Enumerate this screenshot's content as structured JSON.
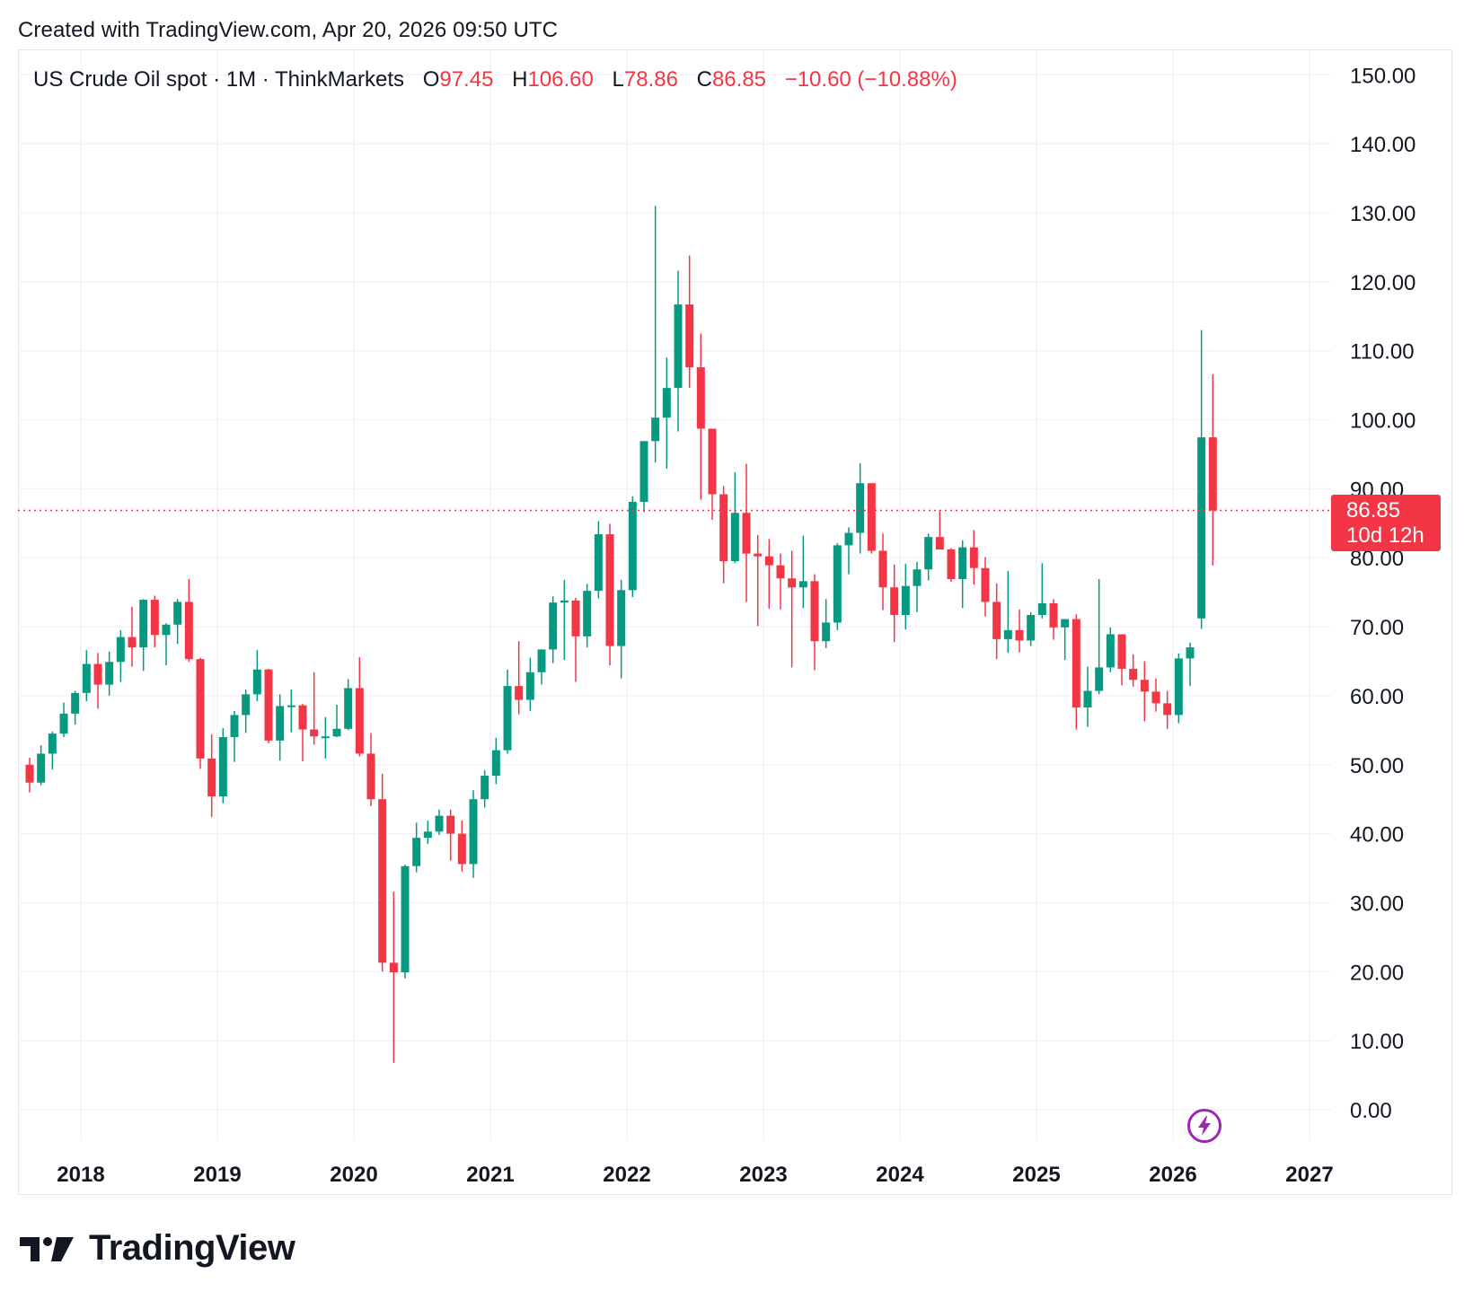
{
  "header": {
    "created_text": "Created with TradingView.com, Apr 20, 2026 09:50 UTC"
  },
  "legend": {
    "symbol": "US Crude Oil spot · 1M · ThinkMarkets",
    "open_label": "O",
    "open": "97.45",
    "high_label": "H",
    "high": "106.60",
    "low_label": "L",
    "low": "78.86",
    "close_label": "C",
    "close": "86.85",
    "change": "−10.60 (−10.88%)"
  },
  "price_tag": {
    "price": "86.85",
    "countdown": "10d 12h"
  },
  "colors": {
    "up": "#089981",
    "down": "#f23645",
    "grid": "#f0f3fa",
    "text": "#131722",
    "bolt": "#9c27b0"
  },
  "icons": {
    "alert": "lightning-bolt-icon"
  },
  "footer": {
    "brand": "TradingView",
    "logo": "tradingview-logo-icon"
  },
  "chart_data": {
    "type": "candlestick",
    "interval": "1M",
    "current_price": 86.85,
    "y_ticks": [
      "0.00",
      "10.00",
      "20.00",
      "30.00",
      "40.00",
      "50.00",
      "60.00",
      "70.00",
      "80.00",
      "90.00",
      "100.00",
      "110.00",
      "120.00",
      "130.00",
      "140.00",
      "150.00"
    ],
    "ylim": [
      -5,
      152
    ],
    "x_ticks": [
      "2018",
      "2019",
      "2020",
      "2021",
      "2022",
      "2023",
      "2024",
      "2025",
      "2026",
      "2027"
    ],
    "grid": true,
    "candles": [
      {
        "date": "2017-08",
        "o": 50.0,
        "h": 51.0,
        "l": 46.0,
        "c": 47.4
      },
      {
        "date": "2017-09",
        "o": 47.4,
        "h": 52.8,
        "l": 47.0,
        "c": 51.6
      },
      {
        "date": "2017-10",
        "o": 51.6,
        "h": 54.8,
        "l": 49.3,
        "c": 54.5
      },
      {
        "date": "2017-11",
        "o": 54.5,
        "h": 59.0,
        "l": 54.0,
        "c": 57.4
      },
      {
        "date": "2017-12",
        "o": 57.4,
        "h": 60.7,
        "l": 55.8,
        "c": 60.4
      },
      {
        "date": "2018-01",
        "o": 60.4,
        "h": 66.6,
        "l": 59.2,
        "c": 64.6
      },
      {
        "date": "2018-02",
        "o": 64.6,
        "h": 66.2,
        "l": 58.1,
        "c": 61.6
      },
      {
        "date": "2018-03",
        "o": 61.6,
        "h": 66.4,
        "l": 60.0,
        "c": 64.9
      },
      {
        "date": "2018-04",
        "o": 64.9,
        "h": 69.5,
        "l": 62.0,
        "c": 68.5
      },
      {
        "date": "2018-05",
        "o": 68.5,
        "h": 72.9,
        "l": 64.2,
        "c": 67.0
      },
      {
        "date": "2018-06",
        "o": 67.0,
        "h": 74.0,
        "l": 63.6,
        "c": 73.9
      },
      {
        "date": "2018-07",
        "o": 73.9,
        "h": 74.5,
        "l": 67.0,
        "c": 68.8
      },
      {
        "date": "2018-08",
        "o": 68.8,
        "h": 70.5,
        "l": 64.4,
        "c": 70.3
      },
      {
        "date": "2018-09",
        "o": 70.3,
        "h": 74.0,
        "l": 67.5,
        "c": 73.6
      },
      {
        "date": "2018-10",
        "o": 73.6,
        "h": 76.9,
        "l": 64.9,
        "c": 65.3
      },
      {
        "date": "2018-11",
        "o": 65.3,
        "h": 65.5,
        "l": 49.4,
        "c": 50.9
      },
      {
        "date": "2018-12",
        "o": 50.9,
        "h": 54.4,
        "l": 42.4,
        "c": 45.4
      },
      {
        "date": "2019-01",
        "o": 45.4,
        "h": 55.3,
        "l": 44.4,
        "c": 54.0
      },
      {
        "date": "2019-02",
        "o": 54.0,
        "h": 57.8,
        "l": 50.4,
        "c": 57.2
      },
      {
        "date": "2019-03",
        "o": 57.2,
        "h": 60.9,
        "l": 54.6,
        "c": 60.2
      },
      {
        "date": "2019-04",
        "o": 60.2,
        "h": 66.6,
        "l": 59.2,
        "c": 63.8
      },
      {
        "date": "2019-05",
        "o": 63.8,
        "h": 63.9,
        "l": 53.1,
        "c": 53.5
      },
      {
        "date": "2019-06",
        "o": 53.5,
        "h": 60.2,
        "l": 50.6,
        "c": 58.5
      },
      {
        "date": "2019-07",
        "o": 58.5,
        "h": 60.9,
        "l": 54.7,
        "c": 58.6
      },
      {
        "date": "2019-08",
        "o": 58.6,
        "h": 58.8,
        "l": 50.5,
        "c": 55.1
      },
      {
        "date": "2019-09",
        "o": 55.1,
        "h": 63.4,
        "l": 52.9,
        "c": 54.1
      },
      {
        "date": "2019-10",
        "o": 54.1,
        "h": 56.9,
        "l": 50.9,
        "c": 54.1
      },
      {
        "date": "2019-11",
        "o": 54.1,
        "h": 58.7,
        "l": 54.0,
        "c": 55.2
      },
      {
        "date": "2019-12",
        "o": 55.2,
        "h": 62.4,
        "l": 55.0,
        "c": 61.1
      },
      {
        "date": "2020-01",
        "o": 61.1,
        "h": 65.6,
        "l": 51.2,
        "c": 51.6
      },
      {
        "date": "2020-02",
        "o": 51.6,
        "h": 54.6,
        "l": 44.0,
        "c": 45.0
      },
      {
        "date": "2020-03",
        "o": 45.0,
        "h": 48.7,
        "l": 20.0,
        "c": 21.3
      },
      {
        "date": "2020-04",
        "o": 21.3,
        "h": 31.6,
        "l": 6.8,
        "c": 19.9
      },
      {
        "date": "2020-05",
        "o": 19.9,
        "h": 35.5,
        "l": 19.0,
        "c": 35.3
      },
      {
        "date": "2020-06",
        "o": 35.3,
        "h": 41.6,
        "l": 34.4,
        "c": 39.4
      },
      {
        "date": "2020-07",
        "o": 39.4,
        "h": 41.9,
        "l": 38.5,
        "c": 40.3
      },
      {
        "date": "2020-08",
        "o": 40.3,
        "h": 43.5,
        "l": 39.8,
        "c": 42.6
      },
      {
        "date": "2020-09",
        "o": 42.6,
        "h": 43.5,
        "l": 36.1,
        "c": 40.0
      },
      {
        "date": "2020-10",
        "o": 40.0,
        "h": 41.9,
        "l": 34.5,
        "c": 35.6
      },
      {
        "date": "2020-11",
        "o": 35.6,
        "h": 46.3,
        "l": 33.6,
        "c": 45.0
      },
      {
        "date": "2020-12",
        "o": 45.0,
        "h": 49.2,
        "l": 43.8,
        "c": 48.4
      },
      {
        "date": "2021-01",
        "o": 48.4,
        "h": 53.9,
        "l": 47.2,
        "c": 52.1
      },
      {
        "date": "2021-02",
        "o": 52.1,
        "h": 63.8,
        "l": 51.6,
        "c": 61.4
      },
      {
        "date": "2021-03",
        "o": 61.4,
        "h": 67.9,
        "l": 57.3,
        "c": 59.4
      },
      {
        "date": "2021-04",
        "o": 59.4,
        "h": 65.5,
        "l": 57.8,
        "c": 63.4
      },
      {
        "date": "2021-05",
        "o": 63.4,
        "h": 66.7,
        "l": 61.6,
        "c": 66.7
      },
      {
        "date": "2021-06",
        "o": 66.7,
        "h": 74.4,
        "l": 64.7,
        "c": 73.5
      },
      {
        "date": "2021-07",
        "o": 73.5,
        "h": 76.8,
        "l": 65.2,
        "c": 73.8
      },
      {
        "date": "2021-08",
        "o": 73.8,
        "h": 74.2,
        "l": 62.0,
        "c": 68.6
      },
      {
        "date": "2021-09",
        "o": 68.6,
        "h": 76.2,
        "l": 67.0,
        "c": 75.2
      },
      {
        "date": "2021-10",
        "o": 75.2,
        "h": 85.3,
        "l": 74.1,
        "c": 83.4
      },
      {
        "date": "2021-11",
        "o": 83.4,
        "h": 84.9,
        "l": 64.4,
        "c": 67.2
      },
      {
        "date": "2021-12",
        "o": 67.2,
        "h": 76.8,
        "l": 62.5,
        "c": 75.3
      },
      {
        "date": "2022-01",
        "o": 75.3,
        "h": 88.9,
        "l": 74.3,
        "c": 88.1
      },
      {
        "date": "2022-02",
        "o": 88.1,
        "h": 96.1,
        "l": 86.6,
        "c": 96.9
      },
      {
        "date": "2022-03",
        "o": 96.9,
        "h": 131.0,
        "l": 93.8,
        "c": 100.3
      },
      {
        "date": "2022-04",
        "o": 100.3,
        "h": 109.0,
        "l": 92.9,
        "c": 104.6
      },
      {
        "date": "2022-05",
        "o": 104.6,
        "h": 121.6,
        "l": 98.3,
        "c": 116.7
      },
      {
        "date": "2022-06",
        "o": 116.7,
        "h": 123.8,
        "l": 104.6,
        "c": 107.6
      },
      {
        "date": "2022-07",
        "o": 107.6,
        "h": 112.5,
        "l": 88.4,
        "c": 98.7
      },
      {
        "date": "2022-08",
        "o": 98.7,
        "h": 97.6,
        "l": 85.5,
        "c": 89.2
      },
      {
        "date": "2022-09",
        "o": 89.2,
        "h": 90.4,
        "l": 76.3,
        "c": 79.5
      },
      {
        "date": "2022-10",
        "o": 79.5,
        "h": 92.4,
        "l": 79.2,
        "c": 86.5
      },
      {
        "date": "2022-11",
        "o": 86.5,
        "h": 93.6,
        "l": 73.6,
        "c": 80.6
      },
      {
        "date": "2022-12",
        "o": 80.6,
        "h": 83.3,
        "l": 70.1,
        "c": 80.2
      },
      {
        "date": "2023-01",
        "o": 80.2,
        "h": 82.7,
        "l": 72.6,
        "c": 78.9
      },
      {
        "date": "2023-02",
        "o": 78.9,
        "h": 80.6,
        "l": 72.5,
        "c": 77.0
      },
      {
        "date": "2023-03",
        "o": 77.0,
        "h": 81.0,
        "l": 64.1,
        "c": 75.7
      },
      {
        "date": "2023-04",
        "o": 75.7,
        "h": 83.2,
        "l": 72.7,
        "c": 76.6
      },
      {
        "date": "2023-05",
        "o": 76.6,
        "h": 77.6,
        "l": 63.7,
        "c": 67.9
      },
      {
        "date": "2023-06",
        "o": 67.9,
        "h": 74.0,
        "l": 66.9,
        "c": 70.6
      },
      {
        "date": "2023-07",
        "o": 70.6,
        "h": 82.1,
        "l": 69.5,
        "c": 81.8
      },
      {
        "date": "2023-08",
        "o": 81.8,
        "h": 84.4,
        "l": 77.6,
        "c": 83.6
      },
      {
        "date": "2023-09",
        "o": 83.6,
        "h": 93.7,
        "l": 80.6,
        "c": 90.8
      },
      {
        "date": "2023-10",
        "o": 90.8,
        "h": 90.0,
        "l": 80.6,
        "c": 81.0
      },
      {
        "date": "2023-11",
        "o": 81.0,
        "h": 83.5,
        "l": 72.4,
        "c": 75.7
      },
      {
        "date": "2023-12",
        "o": 75.7,
        "h": 79.0,
        "l": 67.8,
        "c": 71.7
      },
      {
        "date": "2024-01",
        "o": 71.7,
        "h": 79.1,
        "l": 69.6,
        "c": 75.9
      },
      {
        "date": "2024-02",
        "o": 75.9,
        "h": 79.4,
        "l": 72.1,
        "c": 78.3
      },
      {
        "date": "2024-03",
        "o": 78.3,
        "h": 83.5,
        "l": 76.7,
        "c": 83.0
      },
      {
        "date": "2024-04",
        "o": 83.0,
        "h": 86.9,
        "l": 81.2,
        "c": 81.2
      },
      {
        "date": "2024-05",
        "o": 81.2,
        "h": 81.4,
        "l": 76.5,
        "c": 76.9
      },
      {
        "date": "2024-06",
        "o": 76.9,
        "h": 82.5,
        "l": 72.7,
        "c": 81.5
      },
      {
        "date": "2024-07",
        "o": 81.5,
        "h": 84.0,
        "l": 76.1,
        "c": 78.5
      },
      {
        "date": "2024-08",
        "o": 78.5,
        "h": 80.1,
        "l": 71.5,
        "c": 73.6
      },
      {
        "date": "2024-09",
        "o": 73.6,
        "h": 76.3,
        "l": 65.3,
        "c": 68.2
      },
      {
        "date": "2024-10",
        "o": 68.2,
        "h": 78.1,
        "l": 66.2,
        "c": 69.5
      },
      {
        "date": "2024-11",
        "o": 69.5,
        "h": 72.5,
        "l": 66.3,
        "c": 68.0
      },
      {
        "date": "2024-12",
        "o": 68.0,
        "h": 72.1,
        "l": 67.2,
        "c": 71.7
      },
      {
        "date": "2025-01",
        "o": 71.7,
        "h": 79.2,
        "l": 71.2,
        "c": 73.4
      },
      {
        "date": "2025-02",
        "o": 73.4,
        "h": 74.0,
        "l": 68.1,
        "c": 69.9
      },
      {
        "date": "2025-03",
        "o": 69.9,
        "h": 71.1,
        "l": 65.2,
        "c": 71.1
      },
      {
        "date": "2025-04",
        "o": 71.1,
        "h": 71.8,
        "l": 55.1,
        "c": 58.3
      },
      {
        "date": "2025-05",
        "o": 58.3,
        "h": 64.2,
        "l": 55.5,
        "c": 60.7
      },
      {
        "date": "2025-06",
        "o": 60.7,
        "h": 76.9,
        "l": 60.2,
        "c": 64.1
      },
      {
        "date": "2025-07",
        "o": 64.1,
        "h": 69.9,
        "l": 63.4,
        "c": 68.9
      },
      {
        "date": "2025-08",
        "o": 68.9,
        "h": 68.6,
        "l": 61.5,
        "c": 63.9
      },
      {
        "date": "2025-09",
        "o": 63.9,
        "h": 66.0,
        "l": 61.3,
        "c": 62.3
      },
      {
        "date": "2025-10",
        "o": 62.3,
        "h": 65.0,
        "l": 56.3,
        "c": 60.6
      },
      {
        "date": "2025-11",
        "o": 60.6,
        "h": 62.5,
        "l": 57.7,
        "c": 58.9
      },
      {
        "date": "2025-12",
        "o": 58.9,
        "h": 60.7,
        "l": 55.2,
        "c": 57.2
      },
      {
        "date": "2026-01",
        "o": 57.2,
        "h": 66.1,
        "l": 56.0,
        "c": 65.4
      },
      {
        "date": "2026-02",
        "o": 65.4,
        "h": 67.7,
        "l": 61.4,
        "c": 67.0
      },
      {
        "date": "2026-03",
        "o": 71.2,
        "h": 113.0,
        "l": 69.7,
        "c": 97.45
      },
      {
        "date": "2026-04",
        "o": 97.45,
        "h": 106.6,
        "l": 78.86,
        "c": 86.85
      }
    ]
  }
}
